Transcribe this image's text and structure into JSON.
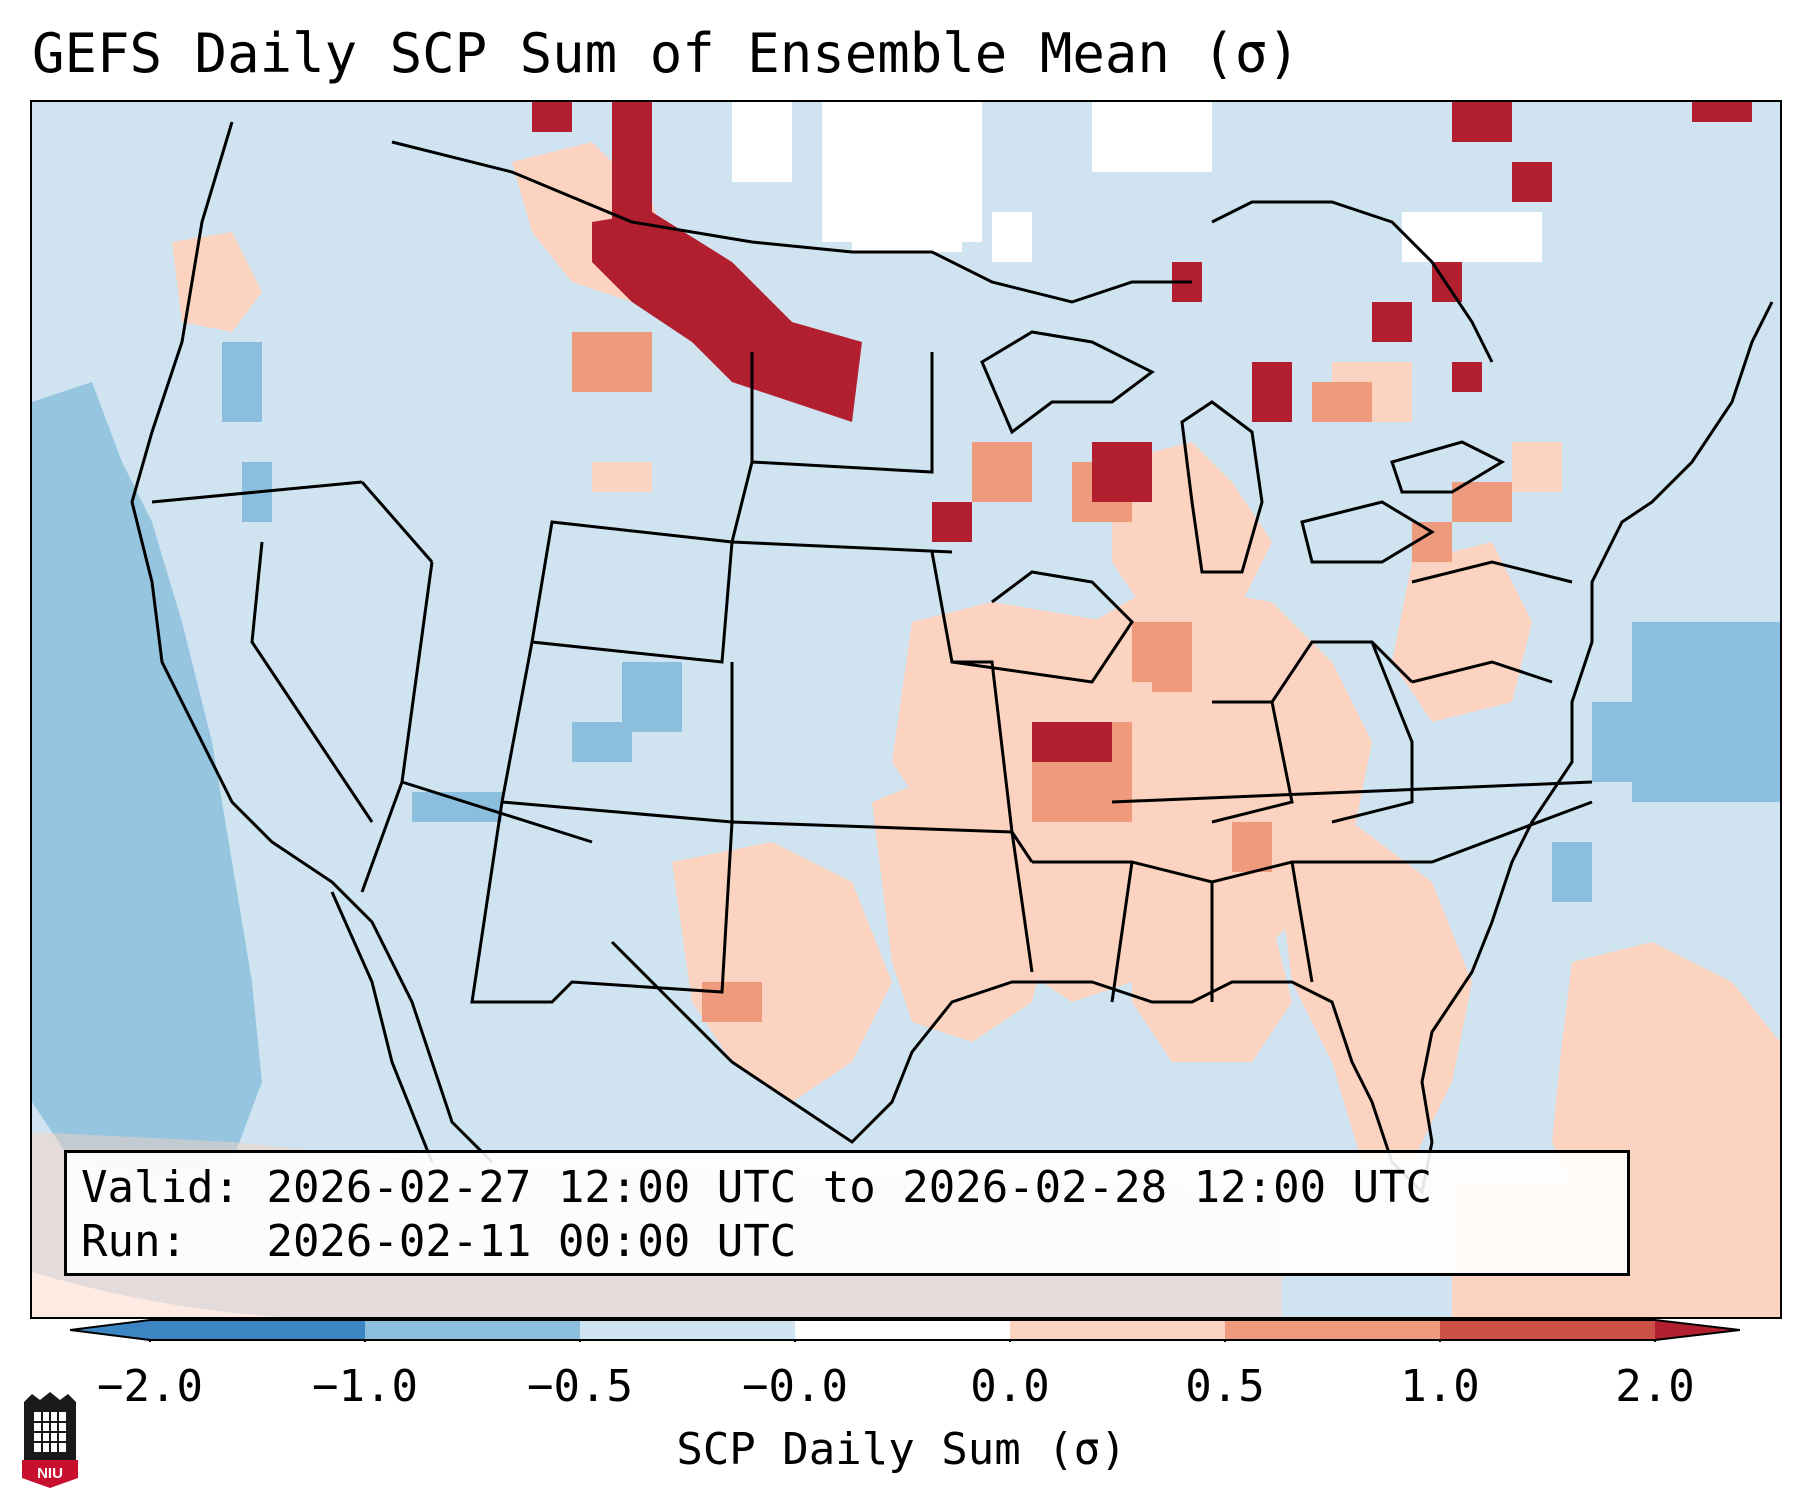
{
  "title": "GEFS Daily SCP Sum of Ensemble Mean (σ)",
  "info": {
    "valid_label": "Valid:",
    "valid_value": "2026-02-27 12:00 UTC to 2026-02-28 12:00 UTC",
    "run_label": "Run:",
    "run_value": "2026-02-11 00:00 UTC"
  },
  "colorbar": {
    "label": "SCP Daily Sum (σ)",
    "ticks": [
      "−2.0",
      "−1.0",
      "−0.5",
      "−0.0",
      "0.0",
      "0.5",
      "1.0",
      "2.0"
    ],
    "colors": [
      "#3a85c2",
      "#8cbfdd",
      "#cfe3f0",
      "#ffffff",
      "#fbd3c0",
      "#ee9a7d",
      "#cc5147"
    ],
    "extend_low_color": "#3a85c2",
    "extend_high_color": "#b2202f"
  },
  "logo_text": "NIU"
}
